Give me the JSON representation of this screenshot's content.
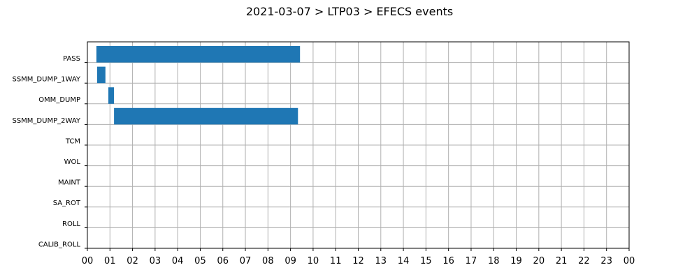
{
  "chart_data": {
    "type": "bar",
    "orientation": "horizontal",
    "title": "2021-03-07 > LTP03 > EFECS events",
    "xlabel": "",
    "ylabel": "",
    "categories": [
      "PASS",
      "SSMM_DUMP_1WAY",
      "OMM_DUMP",
      "SSMM_DUMP_2WAY",
      "TCM",
      "WOL",
      "MAINT",
      "SA_ROT",
      "ROLL",
      "CALIB_ROLL"
    ],
    "x_ticks": [
      "00",
      "01",
      "02",
      "03",
      "04",
      "05",
      "06",
      "07",
      "08",
      "09",
      "10",
      "11",
      "12",
      "13",
      "14",
      "15",
      "16",
      "17",
      "18",
      "19",
      "20",
      "21",
      "22",
      "23",
      "00"
    ],
    "xlim_hours": [
      0,
      24
    ],
    "events": [
      {
        "category": "PASS",
        "start_hour": 0.4,
        "end_hour": 9.42
      },
      {
        "category": "SSMM_DUMP_1WAY",
        "start_hour": 0.43,
        "end_hour": 0.8
      },
      {
        "category": "OMM_DUMP",
        "start_hour": 0.93,
        "end_hour": 1.18
      },
      {
        "category": "SSMM_DUMP_2WAY",
        "start_hour": 1.18,
        "end_hour": 9.33
      }
    ],
    "bar_color": "#1f77b4",
    "grid": true
  }
}
